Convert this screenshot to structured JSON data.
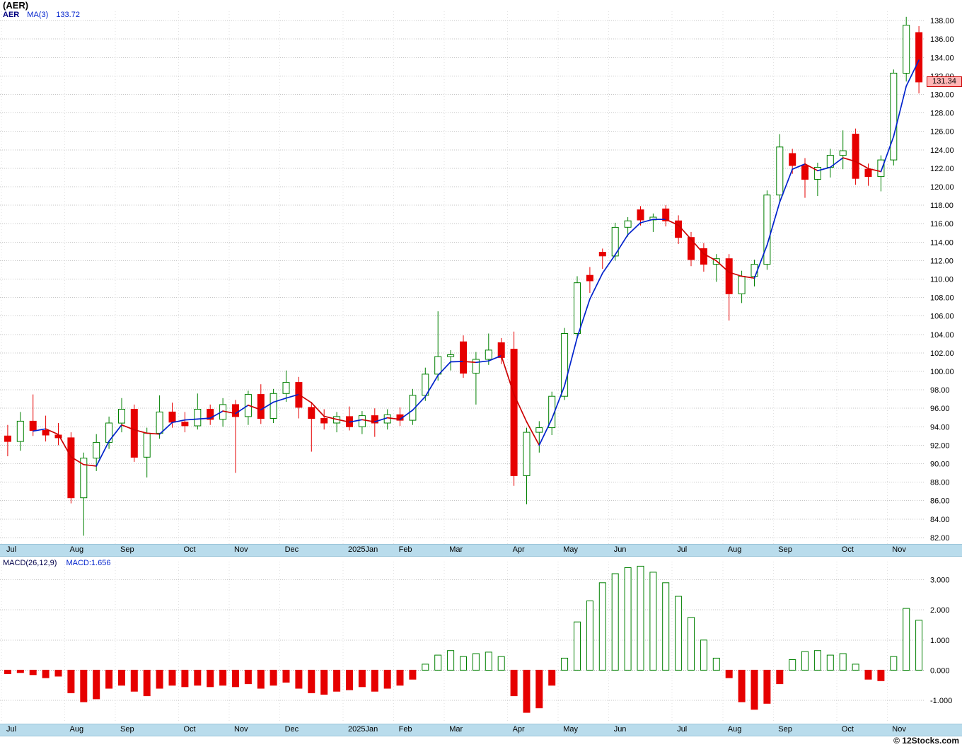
{
  "title": "(AER)",
  "price_panel": {
    "legend": {
      "symbol": "AER",
      "ma_label": "MA(3)",
      "ma_value": "133.72"
    },
    "last_price": "131.34"
  },
  "macd_panel": {
    "label": "MACD(26,12,9)",
    "value": "MACD:1.656"
  },
  "footer": {
    "watermark": "© 12Stocks.com"
  },
  "chart_data": {
    "type": "candlestick_with_macd",
    "symbol": "AER",
    "interval": "weekly",
    "title": "(AER)",
    "legend_position": "top-left",
    "grid": true,
    "months": [
      "Jul",
      "Aug",
      "Sep",
      "Oct",
      "Nov",
      "Dec",
      "2025Jan",
      "Feb",
      "Mar",
      "Apr",
      "May",
      "Jun",
      "Jul",
      "Aug",
      "Sep",
      "Oct",
      "Nov"
    ],
    "month_start_indices": [
      0,
      5,
      9,
      14,
      18,
      22,
      27,
      31,
      35,
      40,
      44,
      48,
      53,
      57,
      61,
      66,
      70
    ],
    "price_axis": {
      "min": 82,
      "max": 138,
      "step": 2,
      "range_shown": [
        81.3,
        139.0
      ]
    },
    "macd_axis": {
      "ticks": [
        3,
        2,
        1,
        0,
        -1
      ],
      "range_shown": [
        -1.75,
        3.6
      ]
    },
    "ma_period": 3,
    "ma_last": 133.72,
    "macd_last": 1.656,
    "last_price": 131.34,
    "candles_ohlc": [
      [
        93.0,
        94.2,
        90.8,
        92.4
      ],
      [
        92.4,
        95.6,
        91.4,
        94.6
      ],
      [
        94.6,
        97.5,
        93.0,
        93.6
      ],
      [
        93.6,
        95.2,
        92.4,
        93.1
      ],
      [
        93.1,
        94.4,
        92.0,
        92.8
      ],
      [
        92.8,
        93.4,
        85.7,
        86.3
      ],
      [
        86.3,
        91.2,
        82.2,
        90.6
      ],
      [
        90.6,
        93.2,
        89.2,
        92.3
      ],
      [
        92.3,
        95.1,
        91.6,
        94.4
      ],
      [
        94.4,
        97.1,
        93.4,
        95.9
      ],
      [
        95.9,
        96.4,
        90.2,
        90.7
      ],
      [
        90.7,
        93.9,
        88.5,
        93.3
      ],
      [
        93.3,
        97.4,
        92.7,
        95.6
      ],
      [
        95.6,
        96.6,
        93.9,
        94.5
      ],
      [
        94.5,
        95.6,
        93.4,
        94.1
      ],
      [
        94.1,
        97.6,
        93.7,
        95.9
      ],
      [
        95.9,
        96.4,
        94.2,
        94.8
      ],
      [
        94.8,
        97.1,
        94.0,
        96.4
      ],
      [
        96.4,
        96.9,
        89.0,
        95.1
      ],
      [
        95.1,
        97.9,
        94.2,
        97.5
      ],
      [
        97.5,
        98.6,
        94.3,
        94.9
      ],
      [
        94.9,
        98.1,
        94.4,
        97.6
      ],
      [
        97.6,
        100.1,
        96.7,
        98.8
      ],
      [
        98.8,
        99.4,
        94.9,
        96.1
      ],
      [
        96.1,
        96.7,
        91.3,
        94.9
      ],
      [
        94.9,
        95.9,
        93.7,
        94.4
      ],
      [
        94.4,
        95.6,
        93.4,
        95.1
      ],
      [
        95.1,
        96.2,
        93.6,
        94.0
      ],
      [
        94.0,
        95.7,
        93.2,
        95.2
      ],
      [
        95.2,
        96.0,
        92.9,
        94.4
      ],
      [
        94.4,
        95.9,
        93.7,
        95.3
      ],
      [
        95.3,
        96.1,
        94.1,
        94.7
      ],
      [
        94.7,
        98.1,
        94.2,
        97.4
      ],
      [
        97.4,
        100.4,
        96.8,
        99.7
      ],
      [
        99.7,
        106.5,
        99.0,
        101.6
      ],
      [
        101.6,
        102.3,
        100.1,
        101.8
      ],
      [
        103.2,
        103.9,
        99.3,
        99.8
      ],
      [
        99.8,
        102.1,
        96.4,
        101.3
      ],
      [
        101.3,
        104.1,
        100.7,
        102.3
      ],
      [
        103.1,
        103.6,
        100.8,
        101.5
      ],
      [
        102.4,
        104.3,
        87.6,
        88.7
      ],
      [
        88.7,
        93.9,
        85.6,
        93.4
      ],
      [
        93.4,
        94.6,
        91.2,
        93.9
      ],
      [
        93.9,
        97.8,
        93.1,
        97.3
      ],
      [
        97.3,
        104.7,
        96.9,
        104.1
      ],
      [
        104.1,
        110.3,
        103.6,
        109.6
      ],
      [
        110.4,
        111.3,
        108.5,
        109.8
      ],
      [
        112.9,
        113.3,
        111.1,
        112.5
      ],
      [
        112.5,
        116.1,
        112.0,
        115.6
      ],
      [
        115.6,
        116.7,
        114.6,
        116.3
      ],
      [
        117.5,
        117.9,
        115.8,
        116.4
      ],
      [
        116.4,
        117.1,
        115.1,
        116.7
      ],
      [
        117.6,
        118.0,
        115.7,
        116.3
      ],
      [
        116.3,
        116.9,
        113.8,
        114.5
      ],
      [
        114.5,
        115.1,
        111.4,
        112.1
      ],
      [
        113.3,
        113.9,
        110.8,
        111.6
      ],
      [
        111.6,
        112.7,
        109.7,
        112.2
      ],
      [
        112.2,
        112.7,
        105.5,
        108.4
      ],
      [
        108.4,
        110.9,
        107.4,
        110.3
      ],
      [
        110.3,
        112.1,
        109.2,
        111.6
      ],
      [
        111.6,
        119.6,
        111.0,
        119.1
      ],
      [
        119.1,
        125.7,
        118.4,
        124.3
      ],
      [
        123.6,
        124.1,
        121.4,
        122.3
      ],
      [
        122.3,
        123.1,
        118.8,
        120.8
      ],
      [
        120.8,
        122.6,
        119.0,
        122.1
      ],
      [
        122.1,
        124.1,
        121.0,
        123.4
      ],
      [
        123.4,
        126.1,
        121.9,
        123.9
      ],
      [
        125.7,
        126.3,
        120.2,
        120.9
      ],
      [
        121.9,
        122.5,
        120.1,
        121.1
      ],
      [
        121.1,
        123.4,
        119.5,
        122.9
      ],
      [
        122.9,
        132.7,
        122.3,
        132.3
      ],
      [
        132.3,
        138.4,
        131.4,
        137.5
      ],
      [
        136.7,
        137.4,
        130.1,
        131.34
      ]
    ],
    "macd_histogram": [
      -0.12,
      -0.08,
      -0.15,
      -0.25,
      -0.2,
      -0.75,
      -1.05,
      -0.95,
      -0.6,
      -0.5,
      -0.7,
      -0.85,
      -0.6,
      -0.5,
      -0.55,
      -0.5,
      -0.55,
      -0.5,
      -0.55,
      -0.45,
      -0.6,
      -0.5,
      -0.4,
      -0.6,
      -0.75,
      -0.8,
      -0.7,
      -0.65,
      -0.55,
      -0.7,
      -0.6,
      -0.5,
      -0.3,
      0.2,
      0.5,
      0.65,
      0.45,
      0.55,
      0.6,
      0.45,
      -0.85,
      -1.4,
      -1.25,
      -0.5,
      0.4,
      1.6,
      2.3,
      2.9,
      3.2,
      3.4,
      3.45,
      3.25,
      2.9,
      2.45,
      1.75,
      1.0,
      0.4,
      -0.25,
      -1.05,
      -1.3,
      -1.1,
      -0.45,
      0.35,
      0.62,
      0.65,
      0.5,
      0.55,
      0.2,
      -0.3,
      -0.35,
      0.45,
      2.05,
      1.656
    ],
    "colors": {
      "up": "#008000",
      "down": "#e60000",
      "ma_up": "#0022cc",
      "ma_down": "#cc0000",
      "grid": "#c6c6c6",
      "month_grid": "#e2e2e2",
      "strip_bg": "#b9dcec",
      "tag_bg": "#ffb6b6",
      "tag_border": "#cc0000"
    }
  }
}
